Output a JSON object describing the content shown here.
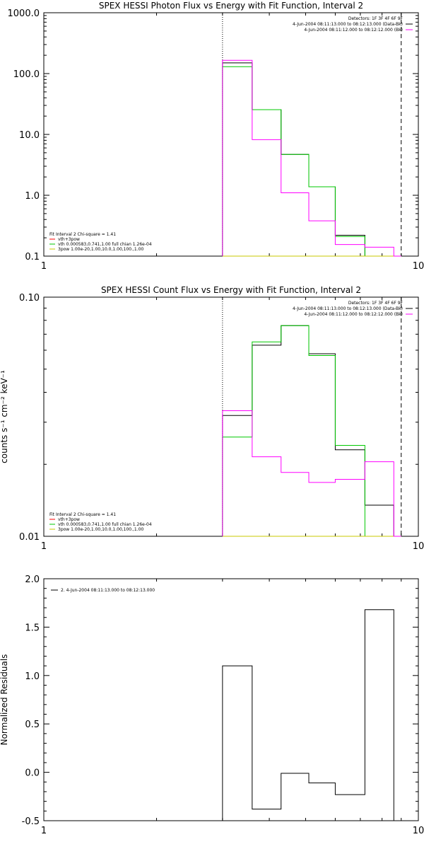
{
  "chart_data": [
    {
      "type": "line",
      "title": "SPEX HESSI Photon Flux vs Energy with Fit Function, Interval 2",
      "xlabel": "",
      "ylabel": "",
      "xscale": "log",
      "yscale": "log",
      "xlim": [
        1,
        10
      ],
      "ylim": [
        0.1,
        1000
      ],
      "x_tick_labels": [
        "1",
        "10"
      ],
      "y_tick_labels": [
        "0.1",
        "1.0",
        "10.0",
        "100.0",
        "1000.0"
      ],
      "y_ticks": [
        0.1,
        1,
        10,
        100,
        1000
      ],
      "bin_edges": [
        3.0,
        3.6,
        4.3,
        5.1,
        6.0,
        7.2,
        8.6,
        9.0
      ],
      "series": [
        {
          "name": "vth+3pow",
          "color": "#000000",
          "values": [
            150,
            25.5,
            4.7,
            1.38,
            0.22,
            0.1,
            0.1
          ]
        },
        {
          "name": "vth 0.000583,0.741,1.00  full chian 1.26e-04",
          "color": "#00c800",
          "values": [
            130,
            25.5,
            4.7,
            1.38,
            0.21,
            0.1,
            0.1
          ]
        },
        {
          "name": "3pow 1.00e-20,1.00,10.0,1.00,100.,1.00",
          "color": "#c8c800",
          "values": [
            0.1,
            0.1,
            0.1,
            0.1,
            0.1,
            0.1,
            0.1
          ]
        },
        {
          "name": "",
          "color": "#ff00ff",
          "values": [
            165,
            8.2,
            1.1,
            0.38,
            0.155,
            0.14,
            0.1
          ]
        }
      ],
      "vlines": [
        {
          "x": 3.0,
          "style": "dotted"
        },
        {
          "x": 9.0,
          "style": "dashed"
        }
      ],
      "legend_top_right": [
        {
          "text": "Detectors: 1F 3F 4F 6F 9F",
          "color": ""
        },
        {
          "text": "4-Jun-2004 08:11:13.000 to 08:12:13.000 (Data-Bk)",
          "color": "#000000"
        },
        {
          "text": "4-Jun-2004 08:11:12.000 to 08:12:12.000 (Bk)",
          "color": "#ff00ff"
        }
      ],
      "legend_bottom_left": [
        {
          "text": "Fit Interval  2    Chi-square = 1.41",
          "color": ""
        },
        {
          "text": "vth+3pow",
          "color": "#ff0000"
        },
        {
          "text": "vth 0.000583,0.741,1.00  full chian 1.26e-04",
          "color": "#00c800"
        },
        {
          "text": "3pow 1.00e-20,1.00,10.0,1.00,100.,1.00",
          "color": "#c8c800"
        }
      ]
    },
    {
      "type": "line",
      "title": "SPEX HESSI Count Flux vs Energy with Fit Function, Interval 2",
      "xlabel": "",
      "ylabel": "counts s⁻¹ cm⁻² keV⁻¹",
      "xscale": "log",
      "yscale": "log",
      "xlim": [
        1,
        10
      ],
      "ylim": [
        0.01,
        0.1
      ],
      "x_tick_labels": [
        "1",
        "10"
      ],
      "y_tick_labels": [
        "0.01",
        "0.10"
      ],
      "y_ticks": [
        0.01,
        0.1
      ],
      "bin_edges": [
        3.0,
        3.6,
        4.3,
        5.1,
        6.0,
        7.2,
        8.6,
        9.0
      ],
      "series": [
        {
          "name": "vth+3pow",
          "color": "#000000",
          "values": [
            0.032,
            0.063,
            0.076,
            0.058,
            0.023,
            0.0135,
            0.01
          ]
        },
        {
          "name": "vth 0.000583,0.741,1.00  full chian 1.26e-04",
          "color": "#00c800",
          "values": [
            0.026,
            0.065,
            0.076,
            0.057,
            0.024,
            0.01,
            0.01
          ]
        },
        {
          "name": "3pow 1.00e-20,1.00,10.0,1.00,100.,1.00",
          "color": "#c8c800",
          "values": [
            0.01,
            0.01,
            0.01,
            0.01,
            0.01,
            0.01,
            0.01
          ]
        },
        {
          "name": "",
          "color": "#ff00ff",
          "values": [
            0.0335,
            0.0215,
            0.0185,
            0.0168,
            0.0173,
            0.0205,
            0.01
          ]
        }
      ],
      "vlines": [
        {
          "x": 3.0,
          "style": "dotted"
        },
        {
          "x": 9.0,
          "style": "dashed"
        }
      ],
      "legend_top_right": [
        {
          "text": "Detectors: 1F 3F 4F 6F 9F",
          "color": ""
        },
        {
          "text": "4-Jun-2004 08:11:13.000 to 08:12:13.000 (Data-Bk)",
          "color": "#000000"
        },
        {
          "text": "4-Jun-2004 08:11:12.000 to 08:12:12.000 (Bk)",
          "color": "#ff00ff"
        }
      ],
      "legend_bottom_left": [
        {
          "text": "Fit Interval  2    Chi-square = 1.41",
          "color": ""
        },
        {
          "text": "vth+3pow",
          "color": "#ff0000"
        },
        {
          "text": "vth 0.000583,0.741,1.00  full chian 1.26e-04",
          "color": "#00c800"
        },
        {
          "text": "3pow 1.00e-20,1.00,10.0,1.00,100.,1.00",
          "color": "#c8c800"
        }
      ]
    },
    {
      "type": "line",
      "title": "",
      "xlabel": "",
      "ylabel": "Normalized Residuals",
      "xscale": "log",
      "yscale": "linear",
      "xlim": [
        1,
        10
      ],
      "ylim": [
        -0.5,
        2.0
      ],
      "x_tick_labels": [
        "1",
        "10"
      ],
      "y_tick_labels": [
        "-0.5",
        "0.0",
        "0.5",
        "1.0",
        "1.5",
        "2.0"
      ],
      "y_ticks": [
        -0.5,
        0.0,
        0.5,
        1.0,
        1.5,
        2.0
      ],
      "bin_edges": [
        3.0,
        3.6,
        4.3,
        5.1,
        6.0,
        7.2,
        8.6,
        9.0
      ],
      "series": [
        {
          "name": "2.  4-Jun-2004 08:11:13.000 to 08:12:13.000",
          "color": "#000000",
          "values": [
            1.1,
            -0.38,
            -0.01,
            -0.11,
            -0.23,
            1.68,
            -0.5
          ]
        }
      ],
      "vlines": [],
      "legend_top_left": [
        {
          "text": "2.  4-Jun-2004 08:11:13.000 to 08:12:13.000",
          "color": "#000000"
        }
      ]
    }
  ]
}
